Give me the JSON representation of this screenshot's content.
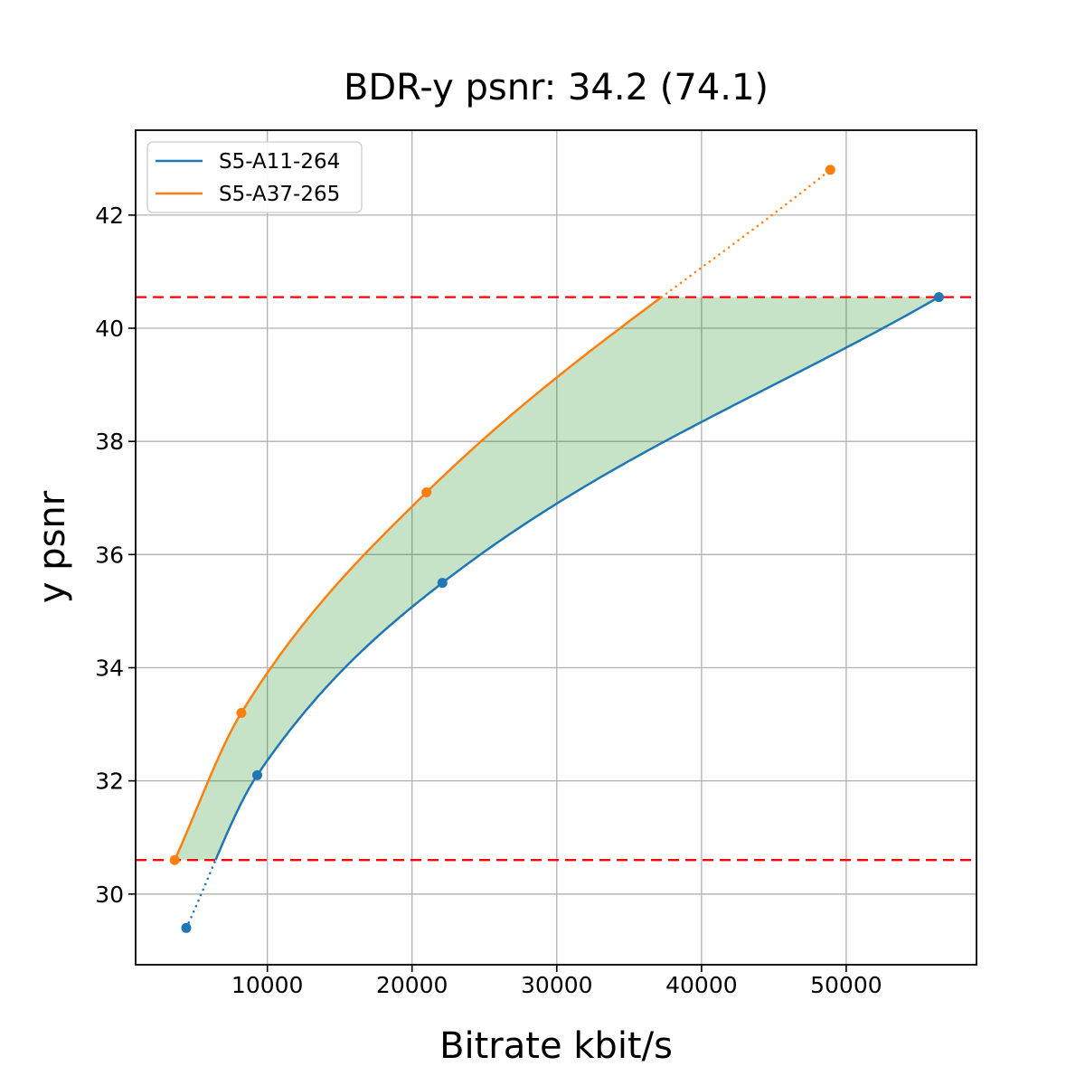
{
  "figure_title": "BDR-y psnr: 34.2 (74.1)",
  "chart_data": {
    "type": "line",
    "title": "BDR-y psnr: 34.2 (74.1)",
    "xlabel": "Bitrate kbit/s",
    "ylabel": "y psnr",
    "xlim": [
      900,
      59000
    ],
    "ylim": [
      28.75,
      43.5
    ],
    "xticks": [
      10000,
      20000,
      30000,
      40000,
      50000
    ],
    "yticks": [
      30,
      32,
      34,
      36,
      38,
      40,
      42
    ],
    "grid": true,
    "grid_color": "#b0b0b0",
    "legend": {
      "position": "upper-left",
      "entries": [
        "S5-A11-264",
        "S5-A37-265"
      ]
    },
    "series": [
      {
        "name": "S5-A11-264",
        "color": "#1f77b4",
        "marker": "circle",
        "x": [
          4400,
          9300,
          22100,
          56400
        ],
        "y": [
          29.4,
          32.1,
          35.5,
          40.55
        ]
      },
      {
        "name": "S5-A37-265",
        "color": "#ff7f0e",
        "marker": "circle",
        "x": [
          3600,
          8200,
          21000,
          48900
        ],
        "y": [
          30.6,
          33.2,
          37.1,
          42.8
        ]
      }
    ],
    "overlap_hlines": {
      "color": "#ff0000",
      "style": "dashed",
      "y_values": [
        30.6,
        40.55
      ]
    },
    "fill_between": {
      "color": "#008000",
      "opacity": 0.22,
      "between": [
        "S5-A37-265",
        "S5-A11-264"
      ],
      "y_range": [
        30.6,
        40.55
      ]
    }
  }
}
